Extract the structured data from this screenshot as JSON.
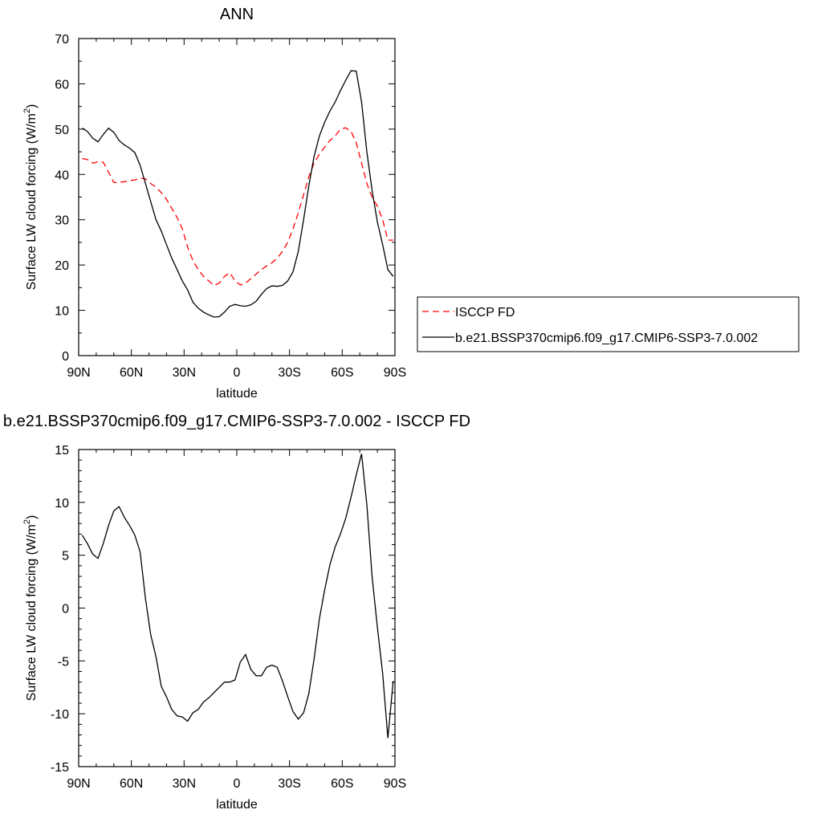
{
  "chart_data": [
    {
      "type": "line",
      "title": "ANN",
      "xlabel": "latitude",
      "ylabel": "Surface LW cloud forcing (W/m",
      "ylabel_sup": "2",
      "ylabel_end": ")",
      "xlim": [
        90,
        -90
      ],
      "ylim": [
        0,
        70
      ],
      "x_ticks": [
        90,
        60,
        30,
        0,
        -30,
        -60,
        -90
      ],
      "x_tick_labels": [
        "90N",
        "60N",
        "30N",
        "0",
        "30S",
        "60S",
        "90S"
      ],
      "y_ticks": [
        0,
        10,
        20,
        30,
        40,
        50,
        60,
        70
      ],
      "y_tick_labels": [
        "0",
        "10",
        "20",
        "30",
        "40",
        "50",
        "60",
        "70"
      ],
      "grid": false,
      "legend": "right",
      "series": [
        {
          "name": "ISCCP FD",
          "color": "#ff0000",
          "dash": "dashed",
          "x": [
            88,
            85,
            82,
            79,
            76,
            73,
            70,
            67,
            64,
            61,
            58,
            55,
            52,
            49,
            46,
            43,
            40,
            37,
            34,
            31,
            28,
            25,
            22,
            19,
            16,
            13,
            10,
            7,
            4,
            1,
            -2,
            -5,
            -8,
            -11,
            -14,
            -17,
            -20,
            -23,
            -26,
            -29,
            -32,
            -35,
            -38,
            -41,
            -44,
            -47,
            -50,
            -53,
            -56,
            -59,
            -62,
            -65,
            -68,
            -71,
            -74,
            -77,
            -80,
            -83,
            -86,
            -89
          ],
          "values": [
            43.5,
            43.3,
            42.5,
            42.8,
            42.7,
            40.5,
            38.2,
            38.2,
            38.4,
            38.6,
            38.8,
            39.2,
            39.0,
            38.0,
            37.2,
            36.0,
            34.5,
            32.5,
            30.5,
            28.0,
            24.0,
            21.0,
            19.0,
            17.5,
            16.5,
            15.5,
            16.0,
            17.5,
            18.3,
            16.5,
            15.6,
            16.0,
            17.0,
            18.0,
            19.0,
            19.8,
            20.5,
            21.5,
            23.0,
            25.0,
            28.0,
            31.5,
            35.5,
            39.5,
            42.5,
            44.5,
            46.0,
            47.5,
            48.5,
            50.0,
            50.3,
            49.5,
            47.0,
            42.5,
            38.0,
            35.0,
            33.0,
            30.0,
            25.5,
            25.5
          ]
        },
        {
          "name": "b.e21.BSSP370cmip6.f09_g17.CMIP6-SSP3-7.0.002",
          "color": "#000000",
          "dash": "solid",
          "x": [
            88,
            85,
            82,
            79,
            76,
            73,
            70,
            67,
            64,
            61,
            58,
            55,
            52,
            49,
            46,
            43,
            40,
            37,
            34,
            31,
            28,
            25,
            22,
            19,
            16,
            13,
            10,
            7,
            4,
            1,
            -2,
            -5,
            -8,
            -11,
            -14,
            -17,
            -20,
            -23,
            -26,
            -29,
            -32,
            -35,
            -38,
            -41,
            -44,
            -47,
            -50,
            -53,
            -56,
            -59,
            -62,
            -65,
            -68,
            -71,
            -74,
            -77,
            -80,
            -83,
            -86,
            -89
          ],
          "values": [
            50.2,
            49.5,
            48.0,
            47.2,
            48.8,
            50.2,
            49.3,
            47.5,
            46.5,
            45.8,
            44.8,
            42.0,
            38.0,
            34.0,
            30.0,
            27.5,
            24.5,
            21.5,
            19.0,
            16.5,
            14.5,
            11.8,
            10.5,
            9.6,
            9.0,
            8.5,
            8.6,
            9.6,
            10.9,
            11.3,
            11.0,
            10.9,
            11.2,
            12.0,
            13.5,
            14.8,
            15.4,
            15.3,
            15.5,
            16.5,
            18.5,
            23.0,
            30.0,
            37.5,
            44.0,
            48.5,
            51.5,
            54.0,
            56.0,
            58.5,
            60.8,
            62.9,
            62.8,
            56.0,
            45.0,
            36.5,
            29.5,
            24.5,
            19.0,
            17.5
          ]
        }
      ]
    },
    {
      "type": "line",
      "title": "b.e21.BSSP370cmip6.f09_g17.CMIP6-SSP3-7.0.002 - ISCCP FD",
      "xlabel": "latitude",
      "ylabel": "Surface LW cloud forcing (W/m",
      "ylabel_sup": "2",
      "ylabel_end": ")",
      "xlim": [
        90,
        -90
      ],
      "ylim": [
        -15,
        15
      ],
      "x_ticks": [
        90,
        60,
        30,
        0,
        -30,
        -60,
        -90
      ],
      "x_tick_labels": [
        "90N",
        "60N",
        "30N",
        "0",
        "30S",
        "60S",
        "90S"
      ],
      "y_ticks": [
        -15,
        -10,
        -5,
        0,
        5,
        10,
        15
      ],
      "y_tick_labels": [
        "-15",
        "-10",
        "-5",
        "0",
        "5",
        "10",
        "15"
      ],
      "grid": false,
      "series": [
        {
          "color": "#000000",
          "dash": "solid",
          "x": [
            88,
            85,
            82,
            79,
            76,
            73,
            70,
            67,
            64,
            61,
            58,
            55,
            52,
            49,
            46,
            43,
            40,
            37,
            34,
            31,
            28,
            25,
            22,
            19,
            16,
            13,
            10,
            7,
            4,
            1,
            -2,
            -5,
            -8,
            -11,
            -14,
            -17,
            -20,
            -23,
            -26,
            -29,
            -32,
            -35,
            -38,
            -41,
            -44,
            -47,
            -50,
            -53,
            -56,
            -59,
            -62,
            -65,
            -68,
            -71,
            -74,
            -77,
            -80,
            -83,
            -86,
            -89
          ],
          "values": [
            6.9,
            6.1,
            5.1,
            4.7,
            6.1,
            7.8,
            9.2,
            9.6,
            8.6,
            7.8,
            6.9,
            5.3,
            0.9,
            -2.5,
            -4.6,
            -7.4,
            -8.4,
            -9.6,
            -10.2,
            -10.3,
            -10.7,
            -9.9,
            -9.6,
            -8.9,
            -8.5,
            -8.0,
            -7.5,
            -7.0,
            -7.0,
            -6.8,
            -5.1,
            -4.4,
            -5.8,
            -6.4,
            -6.4,
            -5.6,
            -5.4,
            -5.6,
            -6.9,
            -8.4,
            -9.8,
            -10.5,
            -9.9,
            -8.1,
            -4.8,
            -1.0,
            1.7,
            4.1,
            5.8,
            7.0,
            8.5,
            10.5,
            12.6,
            14.6,
            9.8,
            3.0,
            -1.8,
            -6.2,
            -12.3,
            -6.9
          ]
        }
      ]
    }
  ]
}
